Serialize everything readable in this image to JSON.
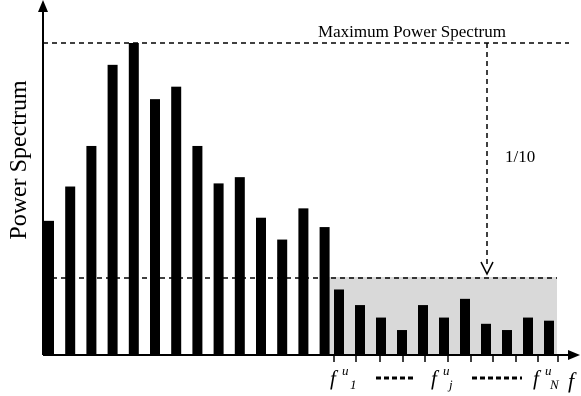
{
  "ylabel": "Power Spectrum",
  "max_label": "Maximum Power Spectrum",
  "ratio_label": "1/10",
  "x_axis_letter": "f",
  "freq_labels": [
    {
      "base": "f",
      "sup": "u",
      "sub": "1"
    },
    {
      "base": "f",
      "sup": "u",
      "sub": "j"
    },
    {
      "base": "f",
      "sup": "u",
      "sub": "N"
    }
  ],
  "colors": {
    "bars": "#000000",
    "shade": "#d9d9d9",
    "axes": "#000000"
  },
  "bars_low_band": [
    0.43,
    0.54,
    0.67,
    0.93,
    1.0,
    0.82,
    0.86,
    0.67,
    0.55,
    0.57,
    0.44,
    0.37,
    0.47,
    0.41
  ],
  "bars_high_band": [
    0.21,
    0.16,
    0.12,
    0.08,
    0.16,
    0.12,
    0.18,
    0.1,
    0.08,
    0.12,
    0.11
  ]
}
